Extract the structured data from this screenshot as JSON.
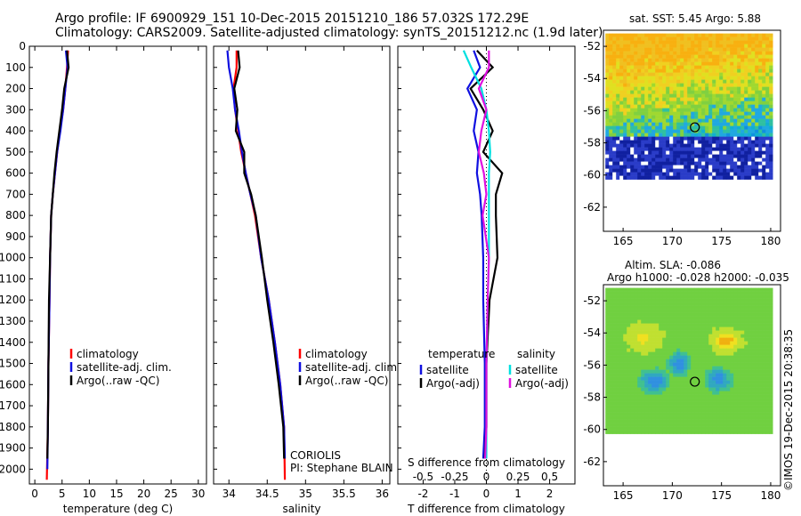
{
  "header": {
    "line1": "Argo profile: IF 6900929_151 10-Dec-2015 20151210_186 57.032S 172.29E",
    "line2": "Climatology: CARS2009. Satellite-adjusted climatology: synTS_20151212.nc (1.9d later)"
  },
  "footer": {
    "institute": "CORIOLIS",
    "pi": "PI: Stephane BLAIN",
    "copyright": "©IMOS 19-Dec-2015 20:38:35"
  },
  "colors": {
    "climatology": "#ff0000",
    "satellite": "#1010e0",
    "argo": "#000000",
    "sal_satellite": "#00e0e0",
    "sal_argo": "#e010e0"
  },
  "chart_data": [
    {
      "id": "temperature",
      "type": "line",
      "xlabel": "temperature (deg C)",
      "ylabel": "",
      "xlim": [
        -1,
        31.5
      ],
      "ylim": [
        2070,
        0
      ],
      "xticks": [
        0,
        5,
        10,
        15,
        20,
        25,
        30
      ],
      "yticks": [
        0,
        100,
        200,
        300,
        400,
        500,
        600,
        700,
        800,
        900,
        1000,
        1100,
        1200,
        1300,
        1400,
        1500,
        1600,
        1700,
        1800,
        1900,
        2000
      ],
      "legend": [
        "climatology",
        "satellite-adj. clim.",
        "Argo(..raw -QC)"
      ],
      "series": [
        {
          "name": "climatology",
          "color": "#ff0000",
          "x": [
            6.1,
            5.9,
            5.6,
            5.2,
            4.6,
            4.1,
            3.7,
            3.3,
            3.0,
            2.8,
            2.7,
            2.5,
            2.4,
            2.2
          ],
          "y": [
            20,
            100,
            200,
            300,
            400,
            500,
            600,
            700,
            800,
            1000,
            1200,
            1500,
            1800,
            2050
          ]
        },
        {
          "name": "satellite-adj. clim.",
          "color": "#1010e0",
          "x": [
            5.7,
            6.0,
            5.6,
            5.2,
            4.7,
            4.1,
            3.7,
            3.3,
            3.0,
            2.8,
            2.7,
            2.5,
            2.4,
            2.3
          ],
          "y": [
            20,
            100,
            200,
            300,
            400,
            500,
            600,
            700,
            800,
            1000,
            1200,
            1500,
            1800,
            2000
          ]
        },
        {
          "name": "Argo(..raw -QC)",
          "color": "#000000",
          "x": [
            5.9,
            6.2,
            5.4,
            5.0,
            4.5,
            4.0,
            3.6,
            3.3,
            3.0,
            2.8,
            2.6,
            2.5,
            2.4,
            2.3
          ],
          "y": [
            20,
            100,
            200,
            300,
            400,
            500,
            600,
            700,
            800,
            1000,
            1200,
            1500,
            1800,
            1950
          ]
        }
      ]
    },
    {
      "id": "salinity",
      "type": "line",
      "xlabel": "salinity",
      "ylabel": "",
      "xlim": [
        33.8,
        36.1
      ],
      "ylim": [
        2070,
        0
      ],
      "xticks": [
        34,
        34.5,
        35,
        35.5,
        36
      ],
      "xticklabels": [
        "34",
        "34.5",
        "35",
        "35.5",
        "36"
      ],
      "legend": [
        "climatology",
        "satellite-adj. clim.",
        "Argo(..raw -QC)"
      ],
      "series": [
        {
          "name": "climatology",
          "color": "#ff0000",
          "x": [
            34.1,
            34.1,
            34.06,
            34.08,
            34.12,
            34.16,
            34.22,
            34.28,
            34.34,
            34.42,
            34.52,
            34.6,
            34.67,
            34.72,
            34.73
          ],
          "y": [
            20,
            100,
            200,
            300,
            400,
            500,
            600,
            700,
            800,
            1000,
            1200,
            1400,
            1600,
            1800,
            2050
          ]
        },
        {
          "name": "satellite-adj. clim.",
          "color": "#1010e0",
          "x": [
            33.98,
            34.0,
            34.05,
            34.08,
            34.13,
            34.17,
            34.22,
            34.28,
            34.35,
            34.42,
            34.52,
            34.6,
            34.67,
            34.72,
            34.73
          ],
          "y": [
            20,
            100,
            200,
            300,
            400,
            500,
            600,
            700,
            800,
            1000,
            1200,
            1400,
            1600,
            1800,
            1950
          ]
        },
        {
          "name": "Argo(..raw -QC)",
          "color": "#000000",
          "x": [
            34.12,
            34.14,
            34.07,
            34.11,
            34.09,
            34.2,
            34.2,
            34.29,
            34.35,
            34.43,
            34.5,
            34.58,
            34.65,
            34.71,
            34.72
          ],
          "y": [
            20,
            100,
            200,
            300,
            400,
            500,
            600,
            700,
            800,
            1000,
            1200,
            1400,
            1600,
            1800,
            1950
          ]
        }
      ]
    },
    {
      "id": "difference",
      "type": "line",
      "xlabel": "T difference from climatology",
      "x2label": "S difference from climatology",
      "xlim": [
        -2.8,
        2.8
      ],
      "x2lim": [
        -0.7,
        0.7
      ],
      "ylim": [
        2070,
        0
      ],
      "xticks": [
        -2,
        -1,
        0,
        1,
        2
      ],
      "x2ticks": [
        -0.5,
        -0.25,
        0,
        0.25,
        0.5
      ],
      "x2ticklabels": [
        "-0.5",
        "-0.25",
        "0",
        "0.25",
        "0.5"
      ],
      "legend_groups": [
        {
          "heading": "temperature",
          "items": [
            {
              "name": "satellite",
              "color": "#1010e0"
            },
            {
              "name": "Argo(-adj)",
              "color": "#000000"
            }
          ]
        },
        {
          "heading": "salinity",
          "items": [
            {
              "name": "satellite",
              "color": "#00e0e0"
            },
            {
              "name": "Argo(-adj)",
              "color": "#e010e0"
            }
          ]
        }
      ],
      "series": [
        {
          "name": "temperature satellite",
          "color": "#1010e0",
          "x": [
            -0.4,
            -0.2,
            -0.6,
            -0.3,
            -0.4,
            -0.25,
            -0.3,
            -0.2,
            -0.15,
            -0.1,
            -0.1,
            -0.05,
            -0.05,
            -0.1
          ],
          "y": [
            20,
            100,
            200,
            300,
            400,
            500,
            600,
            700,
            800,
            1000,
            1200,
            1500,
            1800,
            1950
          ]
        },
        {
          "name": "temperature Argo(-adj)",
          "color": "#000000",
          "x": [
            -0.3,
            0.2,
            -0.5,
            -0.1,
            0.2,
            -0.1,
            0.5,
            0.3,
            0.3,
            0.35,
            0.1,
            0.0,
            0.0,
            -0.05
          ],
          "y": [
            20,
            100,
            200,
            300,
            400,
            500,
            600,
            700,
            800,
            1000,
            1200,
            1500,
            1800,
            1950
          ]
        },
        {
          "name": "salinity satellite",
          "color": "#00e0e0",
          "x": [
            -0.18,
            -0.12,
            -0.04,
            0.0,
            0.02,
            0.03,
            0.02,
            0.02,
            0.02,
            0.02,
            0.01,
            0.0,
            0.0,
            0.0
          ],
          "y": [
            20,
            100,
            200,
            300,
            400,
            500,
            600,
            700,
            800,
            1000,
            1200,
            1500,
            1800,
            1950
          ]
        },
        {
          "name": "salinity Argo(-adj)",
          "color": "#e010e0",
          "x": [
            0.02,
            0.02,
            -0.06,
            0.0,
            -0.04,
            -0.06,
            -0.02,
            0.0,
            -0.03,
            0.02,
            0.01,
            0.0,
            0.0,
            -0.01
          ],
          "y": [
            20,
            100,
            200,
            300,
            400,
            500,
            600,
            700,
            800,
            1000,
            1200,
            1500,
            1800,
            1950
          ]
        }
      ]
    },
    {
      "id": "sst_map",
      "type": "heatmap",
      "title": "sat. SST: 5.45  Argo: 5.88",
      "xlim": [
        163,
        181
      ],
      "ylim": [
        -63.5,
        -51
      ],
      "xticks": [
        165,
        170,
        175,
        180
      ],
      "yticks": [
        -52,
        -54,
        -56,
        -58,
        -60,
        -62
      ],
      "float_position": {
        "lon": 172.29,
        "lat": -57.032
      }
    },
    {
      "id": "sla_map",
      "type": "heatmap",
      "title": "Altim. SLA: -0.086",
      "subtitle": "Argo h1000: -0.028 h2000: -0.035",
      "xlim": [
        163,
        181
      ],
      "ylim": [
        -63.5,
        -51
      ],
      "xticks": [
        165,
        170,
        175,
        180
      ],
      "yticks": [
        -52,
        -54,
        -56,
        -58,
        -60,
        -62
      ],
      "float_position": {
        "lon": 172.29,
        "lat": -57.032
      }
    }
  ]
}
